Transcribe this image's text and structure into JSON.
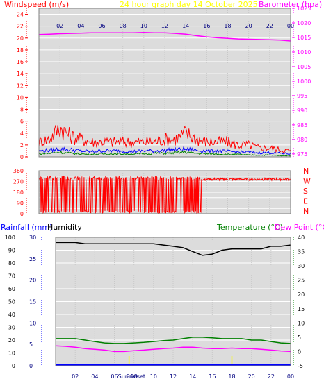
{
  "header": {
    "left_label": "Windspeed (m/s)",
    "title": "24 hour graph day   14 October 2025",
    "right_label": "Barometer (hpa)"
  },
  "colors": {
    "windspeed": "#ff0000",
    "gust": "#ff0000",
    "wind_avg": "#0000ff",
    "wind_low": "#008000",
    "barometer": "#ff00ff",
    "direction": "#ff0000",
    "humidity": "#000000",
    "temperature": "#008000",
    "dew_point": "#ff00ff",
    "rainfall": "#0000ff",
    "sun": "#ffff00",
    "title": "#ffff00",
    "axis_left": "#ff0000",
    "axis_right": "#ff00ff",
    "plot_bg": "#dcdcdc"
  },
  "chart_data": [
    {
      "type": "line",
      "name": "wind_barometer",
      "x_ticks": [
        "02",
        "04",
        "06",
        "08",
        "10",
        "12",
        "14",
        "16",
        "18",
        "20",
        "22",
        "00"
      ],
      "y_left": {
        "label": "Windspeed (m/s)",
        "ylim": [
          0,
          25
        ],
        "ticks": [
          0,
          2,
          4,
          6,
          8,
          10,
          12,
          14,
          16,
          18,
          20,
          22,
          24
        ]
      },
      "y_right": {
        "label": "Barometer (hpa)",
        "ylim": [
          974,
          1025
        ],
        "ticks": [
          975,
          980,
          985,
          990,
          995,
          1000,
          1005,
          1010,
          1015,
          1020,
          1025
        ]
      },
      "grid": true,
      "series": [
        {
          "key": "barometer",
          "axis": "right",
          "x": [
            0,
            1,
            2,
            3,
            4,
            5,
            6,
            7,
            8,
            9,
            10,
            11,
            12,
            13,
            14,
            15,
            16,
            17,
            18,
            19,
            20,
            21,
            22,
            23,
            24
          ],
          "values": [
            1016.0,
            1016.1,
            1016.3,
            1016.4,
            1016.5,
            1016.6,
            1016.6,
            1016.6,
            1016.6,
            1016.6,
            1016.7,
            1016.6,
            1016.6,
            1016.4,
            1016.1,
            1015.6,
            1015.2,
            1014.9,
            1014.7,
            1014.5,
            1014.4,
            1014.3,
            1014.2,
            1014.1,
            1013.8
          ]
        },
        {
          "key": "gust",
          "axis": "left",
          "x": [
            0,
            1,
            2,
            3,
            4,
            5,
            6,
            7,
            8,
            9,
            10,
            11,
            12,
            13,
            14,
            15,
            16,
            17,
            18,
            19,
            20,
            21,
            22,
            23,
            24
          ],
          "values": [
            2.5,
            3.0,
            5.0,
            3.5,
            3.0,
            2.5,
            2.5,
            2.5,
            2.5,
            2.5,
            2.5,
            2.5,
            3.0,
            3.0,
            4.0,
            3.0,
            2.5,
            2.5,
            2.5,
            2.0,
            2.0,
            1.5,
            1.5,
            1.2,
            1.0
          ]
        },
        {
          "key": "wind_avg",
          "axis": "left",
          "x": [
            0,
            1,
            2,
            3,
            4,
            5,
            6,
            7,
            8,
            9,
            10,
            11,
            12,
            13,
            14,
            15,
            16,
            17,
            18,
            19,
            20,
            21,
            22,
            23,
            24
          ],
          "values": [
            1.0,
            1.1,
            1.3,
            1.2,
            1.0,
            0.9,
            1.0,
            1.0,
            1.0,
            0.9,
            1.0,
            1.0,
            1.1,
            1.2,
            1.3,
            1.1,
            1.0,
            1.0,
            0.9,
            0.8,
            0.8,
            0.7,
            0.7,
            0.6,
            0.5
          ]
        },
        {
          "key": "wind_low",
          "axis": "left",
          "x": [
            0,
            1,
            2,
            3,
            4,
            5,
            6,
            7,
            8,
            9,
            10,
            11,
            12,
            13,
            14,
            15,
            16,
            17,
            18,
            19,
            20,
            21,
            22,
            23,
            24
          ],
          "values": [
            0.5,
            0.6,
            0.8,
            0.6,
            0.5,
            0.4,
            0.5,
            0.5,
            0.5,
            0.5,
            0.5,
            0.6,
            0.6,
            0.7,
            0.8,
            0.6,
            0.5,
            0.5,
            0.4,
            0.4,
            0.3,
            0.3,
            0.3,
            0.2,
            0.2
          ]
        }
      ]
    },
    {
      "type": "line",
      "name": "wind_direction",
      "x_ticks": [
        "02",
        "04",
        "06",
        "08",
        "10",
        "12",
        "14",
        "16",
        "18",
        "20",
        "22",
        "00"
      ],
      "y_left": {
        "ylim": [
          0,
          360
        ],
        "ticks": [
          0,
          45,
          90,
          135,
          180,
          225,
          270,
          315,
          360
        ]
      },
      "compass_labels": [
        "N",
        "W",
        "S",
        "E",
        "N"
      ],
      "grid": true,
      "series": [
        {
          "key": "direction",
          "x": [
            0,
            0.5,
            1,
            1.5,
            2,
            2.5,
            3,
            3.5,
            4,
            4.5,
            5,
            5.5,
            6,
            6.5,
            7,
            7.5,
            8,
            8.5,
            9,
            9.5,
            10,
            10.5,
            11,
            11.5,
            12,
            12.5,
            13,
            13.5,
            14,
            14.5,
            15,
            15.5,
            16,
            17,
            18,
            19,
            20,
            21,
            22,
            23,
            24
          ],
          "values": [
            300,
            10,
            300,
            15,
            290,
            5,
            300,
            10,
            295,
            20,
            300,
            5,
            290,
            15,
            300,
            10,
            295,
            5,
            300,
            20,
            290,
            10,
            300,
            5,
            295,
            15,
            300,
            10,
            290,
            5,
            300,
            15,
            290,
            290,
            290,
            285,
            295,
            290,
            280,
            290,
            285
          ]
        }
      ]
    },
    {
      "type": "line",
      "name": "rain_humidity_temperature",
      "labels": {
        "rainfall": "Rainfall (mm)",
        "humidity": "Humidity",
        "temperature": "Temperature (°C)",
        "dew_point": "Dew Point (°C)"
      },
      "x_ticks": [
        "02",
        "04",
        "06",
        "08",
        "10",
        "12",
        "14",
        "16",
        "18",
        "20",
        "22",
        "00"
      ],
      "sun_labels": {
        "sunrise": "Sunrise",
        "sunset": "Sunset"
      },
      "sun_events_hours": [
        7.5,
        18.0
      ],
      "y_humidity": {
        "ylim": [
          0,
          100
        ],
        "ticks": [
          0,
          10,
          20,
          30,
          40,
          50,
          60,
          70,
          80,
          90,
          100
        ]
      },
      "y_rain": {
        "ylim": [
          0,
          30
        ],
        "ticks": [
          0,
          5,
          10,
          15,
          20,
          25,
          30
        ]
      },
      "y_temp": {
        "ylim": [
          -5,
          40
        ],
        "ticks": [
          -5,
          0,
          5,
          10,
          15,
          20,
          25,
          30,
          35,
          40
        ]
      },
      "grid": true,
      "series": [
        {
          "key": "humidity",
          "x": [
            0,
            1,
            2,
            3,
            4,
            5,
            6,
            7,
            8,
            9,
            10,
            11,
            12,
            13,
            14,
            15,
            16,
            17,
            18,
            19,
            20,
            21,
            22,
            23,
            24
          ],
          "values": [
            96,
            96,
            96,
            95,
            95,
            95,
            95,
            95,
            95,
            95,
            95,
            94,
            93,
            92,
            89,
            86,
            87,
            90,
            91,
            91,
            91,
            91,
            93,
            93,
            94
          ]
        },
        {
          "key": "temperature",
          "x": [
            0,
            1,
            2,
            3,
            4,
            5,
            6,
            7,
            8,
            9,
            10,
            11,
            12,
            13,
            14,
            15,
            16,
            17,
            18,
            19,
            20,
            21,
            22,
            23,
            24
          ],
          "values": [
            4.5,
            4.5,
            4.5,
            4.0,
            3.5,
            3.0,
            2.8,
            2.8,
            3.0,
            3.2,
            3.5,
            3.8,
            4.0,
            4.5,
            5.0,
            5.0,
            4.8,
            4.5,
            4.5,
            4.5,
            4.0,
            4.0,
            3.5,
            3.0,
            2.8
          ]
        },
        {
          "key": "dew_point",
          "x": [
            0,
            1,
            2,
            3,
            4,
            5,
            6,
            7,
            8,
            9,
            10,
            11,
            12,
            13,
            14,
            15,
            16,
            17,
            18,
            19,
            20,
            21,
            22,
            23,
            24
          ],
          "values": [
            2.0,
            1.8,
            1.5,
            1.0,
            0.8,
            0.5,
            0.0,
            0.0,
            0.3,
            0.5,
            0.8,
            1.0,
            1.2,
            1.5,
            1.5,
            1.2,
            1.0,
            1.0,
            1.2,
            1.0,
            1.0,
            0.8,
            0.5,
            0.2,
            0.0
          ]
        },
        {
          "key": "rainfall",
          "x": [
            0,
            24
          ],
          "values": [
            0.2,
            0.2
          ]
        }
      ]
    }
  ]
}
